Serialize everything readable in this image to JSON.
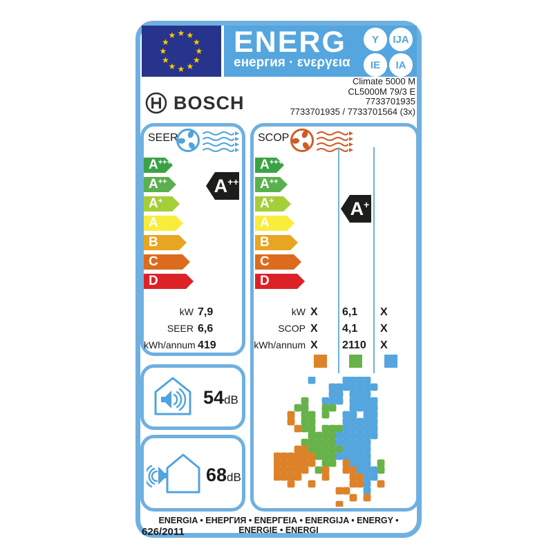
{
  "header": {
    "word": "ENERG",
    "subtitle": "енергия · ενεργεια",
    "badges": [
      "Y",
      "IJA",
      "IE",
      "IA"
    ],
    "star_count": 12
  },
  "brand": {
    "logo_text": "BOSCH",
    "product_lines": [
      "Climate 5000 M",
      "CL5000M 79/3 E",
      "7733701935",
      "7733701935 / 7733701564 (3x)"
    ]
  },
  "scale_classes": [
    {
      "letter": "A",
      "sup": "+++",
      "color": "#3ba244"
    },
    {
      "letter": "A",
      "sup": "++",
      "color": "#5ab04e"
    },
    {
      "letter": "A",
      "sup": "+",
      "color": "#a6ce39"
    },
    {
      "letter": "A",
      "sup": "",
      "color": "#f9ed3b"
    },
    {
      "letter": "B",
      "sup": "",
      "color": "#e7a522"
    },
    {
      "letter": "C",
      "sup": "",
      "color": "#dd6b1e"
    },
    {
      "letter": "D",
      "sup": "",
      "color": "#dc2227"
    }
  ],
  "seer": {
    "label": "SEER",
    "rating": {
      "letter": "A",
      "sup": "++"
    },
    "rows": [
      {
        "label": "kW",
        "value": "7,9"
      },
      {
        "label": "SEER",
        "value": "6,6"
      },
      {
        "label": "kWh/annum",
        "value": "419"
      }
    ]
  },
  "scop": {
    "label": "SCOP",
    "rating": {
      "letter": "A",
      "sup": "+"
    },
    "rows": [
      {
        "label": "kW",
        "values": [
          "X",
          "6,1",
          "X"
        ]
      },
      {
        "label": "SCOP",
        "values": [
          "X",
          "4,1",
          "X"
        ]
      },
      {
        "label": "kWh/annum",
        "values": [
          "X",
          "2110",
          "X"
        ]
      }
    ],
    "zone_colors": [
      "#dd8228",
      "#67b24a",
      "#55a5de"
    ]
  },
  "noise": {
    "indoor": {
      "value": "54",
      "unit": "dB"
    },
    "outdoor": {
      "value": "68",
      "unit": "dB"
    }
  },
  "footer": {
    "energy_words": "ENERGIA • ЕНЕРГИЯ • ΕΝΕΡΓΕΙΑ • ENERGIJA • ENERGY • ENERGIE • ENERGI",
    "regulation": "626/2011"
  },
  "colors": {
    "frame": "#6fb0e1",
    "flag-bg": "#27348b",
    "star": "#ffcc00",
    "banner": "#55a5de",
    "seer-accent": "#51a3dd",
    "scop-accent": "#cf5b27",
    "rating-bg": "#1d1d1b",
    "text": "#1a1a1a"
  },
  "map": {
    "cell": 10,
    "legend": {
      "O": "#dd8228",
      "G": "#67b24a",
      "B": "#55a5de"
    },
    "grid": [
      ".....B....BBBB....",
      "........BBBBBBB...",
      "........BB.BBB....",
      "....G..BBB.BBBB...",
      "...GG..GG..BBBB...",
      "..O.GG.G..BB.BB...",
      "..O.GG....BBBBB...",
      "...OGG.GGGBBBBB...",
      ".....GGGGBBBBBB...",
      "....GGGGGBBBBB....",
      "...OOGGGGGBBBB....",
      "OOOOOOGGGBBBBB....",
      "OOOOOO.GG.OBBB.G..",
      "OOOOO.GO..OOBBBG..",
      "OOOO...O...OOBB...",
      "..O..O.....OOB.O..",
      ".........OO..B....",
      "...........O.O....",
      ".........O........"
    ]
  }
}
